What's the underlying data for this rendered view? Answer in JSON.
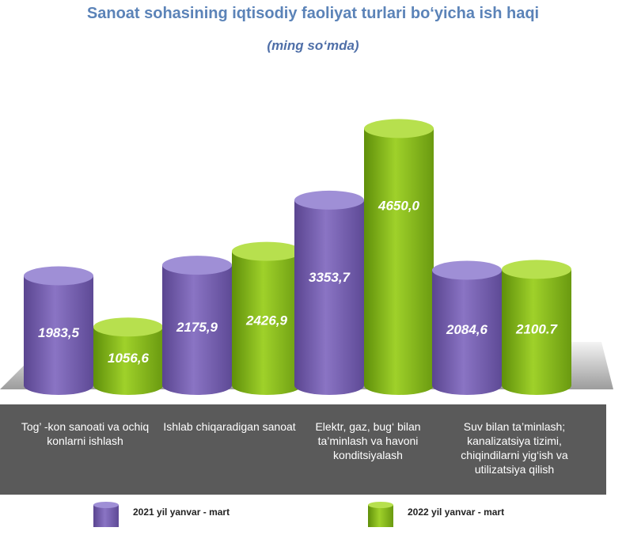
{
  "chart_data": {
    "type": "bar",
    "title": "Sanoat sohasining iqtisodiy faoliyat turlari bo‘yicha ish haqi",
    "subtitle": "(ming so‘mda)",
    "categories": [
      "Tog’ -kon sanoati va ochiq konlarni ishlash",
      "Ishlab chiqaradigan sanoat",
      "Elektr, gaz, bug‘ bilan ta’minlash va havoni konditsiyalash",
      "Suv bilan ta’minlash; kanalizatsiya tizimi, chiqindilarni yig‘ish va utilizatsiya qilish"
    ],
    "series": [
      {
        "name": "2021 yil yanvar - mart",
        "values": [
          1983.5,
          2175.9,
          3353.7,
          2084.6
        ],
        "labels": [
          "1983,5",
          "2175,9",
          "3353,7",
          "2084,6"
        ],
        "color": "#7b64b5"
      },
      {
        "name": "2022 yil yanvar - mart",
        "values": [
          1056.6,
          2426.9,
          4650.0,
          2100.7
        ],
        "labels": [
          "1056,6",
          "2426,9",
          "4650,0",
          "2100.7"
        ],
        "color": "#8cc21a"
      }
    ],
    "ylim": [
      0,
      5000
    ],
    "legend_position": "bottom",
    "grid": false
  }
}
